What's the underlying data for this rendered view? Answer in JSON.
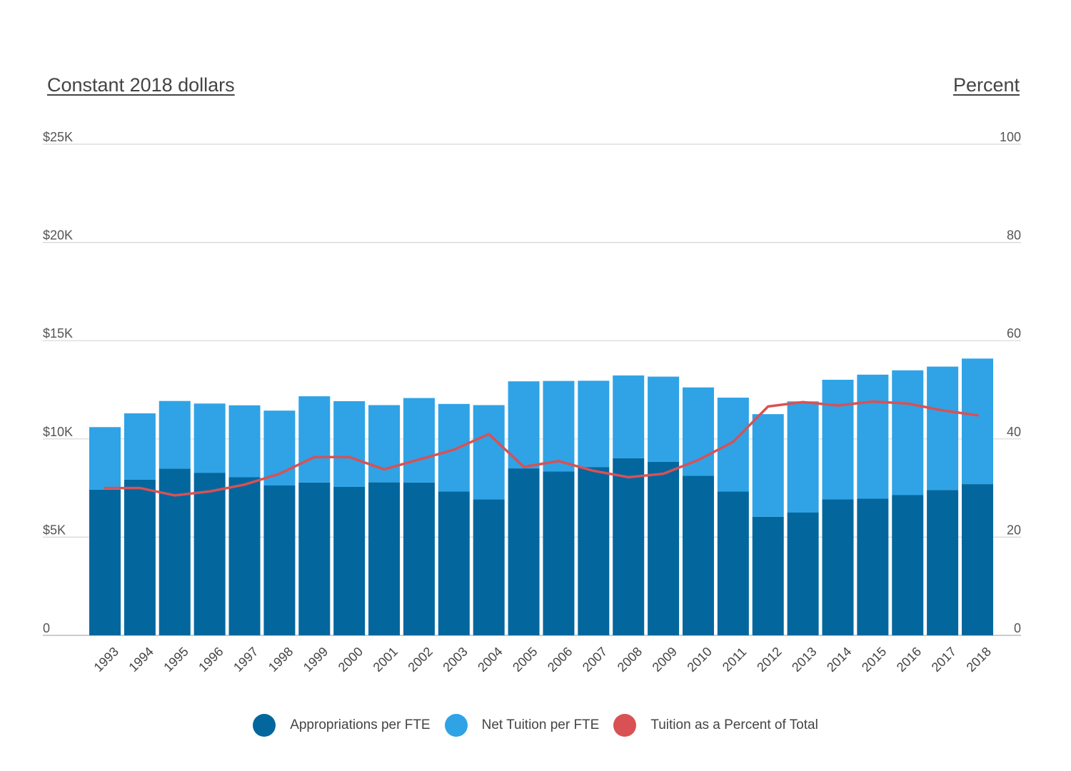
{
  "chart_data": {
    "type": "bar",
    "stacked": true,
    "y_left_label": "Constant 2018 dollars",
    "y_right_label": "Percent",
    "y_left_ticks": [
      "0",
      "$5K",
      "$10K",
      "$15K",
      "$20K",
      "$25K"
    ],
    "y_left_lim": [
      0,
      25000
    ],
    "y_right_ticks": [
      "0",
      "20",
      "40",
      "60",
      "80",
      "100"
    ],
    "y_right_lim": [
      0,
      100
    ],
    "grid": true,
    "legend_position": "bottom",
    "categories": [
      "1993",
      "1994",
      "1995",
      "1996",
      "1997",
      "1998",
      "1999",
      "2000",
      "2001",
      "2002",
      "2003",
      "2004",
      "2005",
      "2006",
      "2007",
      "2008",
      "2009",
      "2010",
      "2011",
      "2012",
      "2013",
      "2014",
      "2015",
      "2016",
      "2017",
      "2018"
    ],
    "series": [
      {
        "name": "Appropriations per FTE",
        "kind": "bar",
        "axis": "left",
        "color": "#03679e",
        "values": [
          7420,
          7930,
          8490,
          8280,
          8060,
          7630,
          7780,
          7560,
          7790,
          7780,
          7330,
          6920,
          8500,
          8350,
          8570,
          9020,
          8840,
          8120,
          7330,
          6040,
          6250,
          6930,
          6960,
          7140,
          7400,
          7700
        ]
      },
      {
        "name": "Net Tuition per FTE",
        "kind": "bar",
        "axis": "left",
        "color": "#2fa3e6",
        "values": [
          3180,
          3370,
          3440,
          3520,
          3650,
          3810,
          4390,
          4360,
          3930,
          4300,
          4450,
          4800,
          4430,
          4600,
          4390,
          4210,
          4330,
          4500,
          4770,
          5220,
          5660,
          6080,
          6310,
          6350,
          6280,
          6390
        ]
      },
      {
        "name": "Tuition as a Percent of Total",
        "kind": "line",
        "axis": "right",
        "color": "#d95154",
        "values": [
          30.0,
          30.0,
          28.5,
          29.3,
          30.7,
          32.9,
          36.3,
          36.3,
          33.8,
          35.8,
          37.8,
          41.0,
          34.3,
          35.5,
          33.5,
          32.2,
          32.9,
          35.7,
          39.4,
          46.6,
          47.5,
          46.8,
          47.6,
          47.2,
          45.8,
          44.8
        ]
      }
    ]
  }
}
